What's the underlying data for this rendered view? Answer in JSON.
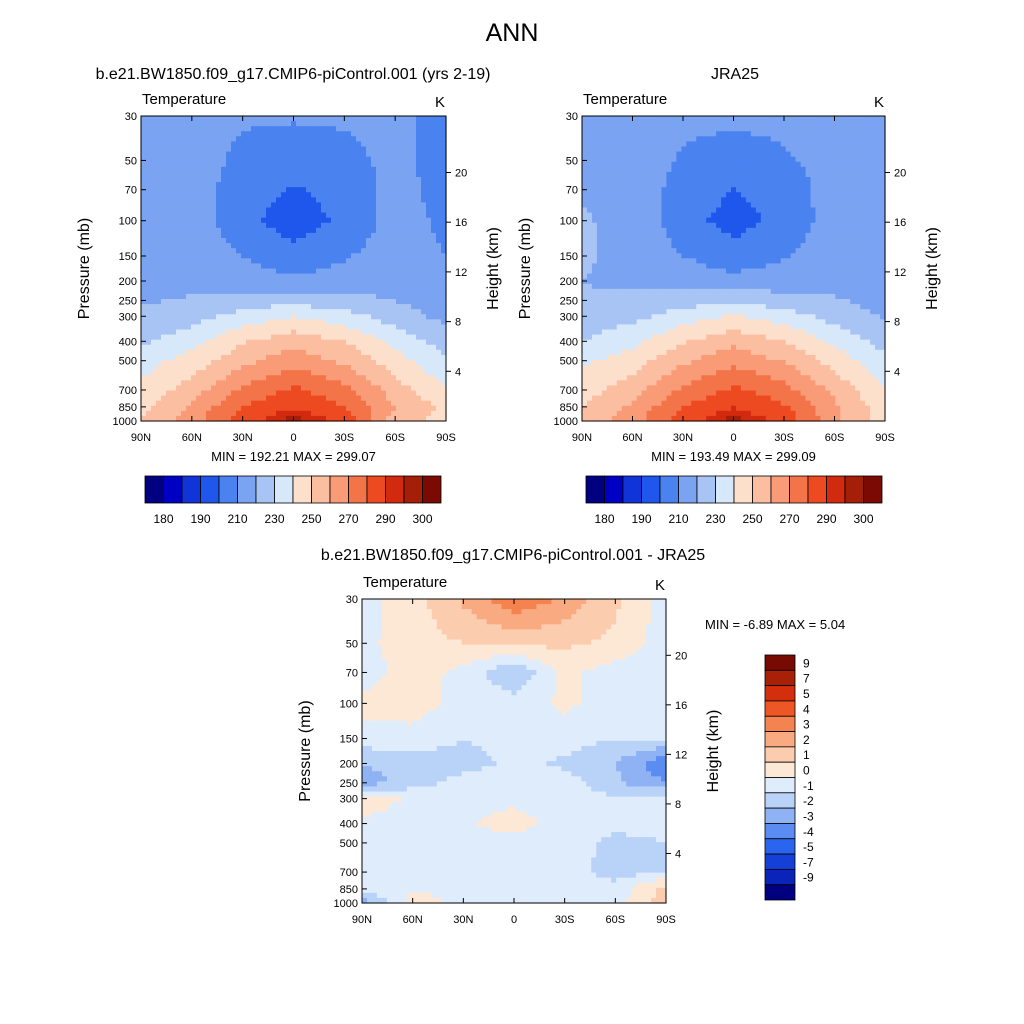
{
  "figure": {
    "title": "ANN"
  },
  "axes": {
    "pressure_label": "Pressure (mb)",
    "height_label": "Height (km)",
    "pressure_ticks": [
      "30",
      "50",
      "70",
      "100",
      "150",
      "200",
      "250",
      "300",
      "400",
      "500",
      "700",
      "850",
      "1000"
    ],
    "height_ticks": [
      "20",
      "16",
      "12",
      "8",
      "4"
    ],
    "lat_ticks": [
      "90N",
      "60N",
      "30N",
      "0",
      "30S",
      "60S",
      "90S"
    ]
  },
  "palette": {
    "abs": [
      "#000080",
      "#0000c4",
      "#1034d8",
      "#1f57ec",
      "#4a82f0",
      "#7aa3f2",
      "#a8c4f5",
      "#d8e8fb",
      "#fde0cc",
      "#fcbea0",
      "#f89b76",
      "#f4744a",
      "#ed4a22",
      "#d22a0e",
      "#a51f08",
      "#7c0a04"
    ],
    "diff": [
      "#000080",
      "#0a23b8",
      "#1540d8",
      "#2a65ef",
      "#5a8cf2",
      "#8eb2f4",
      "#b9d2f7",
      "#dfecfc",
      "#fde8d6",
      "#fcccae",
      "#f9aa80",
      "#f5834f",
      "#ef5626",
      "#d42f0c",
      "#a82008",
      "#780a04"
    ]
  },
  "chart_data": [
    {
      "type": "heatmap",
      "title": "b.e21.BW1850.f09_g17.CMIP6-piControl.001 (yrs 2-19)",
      "variable": "Temperature",
      "units": "K",
      "min_max_text": "MIN = 192.21  MAX = 299.07",
      "x": [
        "90N",
        "60N",
        "30N",
        "0",
        "30S",
        "60S",
        "90S"
      ],
      "y": [
        1000,
        850,
        700,
        500,
        400,
        300,
        250,
        200,
        150,
        100,
        70,
        50,
        30
      ],
      "z": [
        [
          250,
          266,
          286,
          298,
          287,
          255,
          246
        ],
        [
          246,
          262,
          280,
          289,
          280,
          260,
          248
        ],
        [
          242,
          255,
          272,
          282,
          273,
          255,
          240
        ],
        [
          236,
          244,
          257,
          266,
          258,
          244,
          232
        ],
        [
          228,
          236,
          249,
          256,
          250,
          237,
          225
        ],
        [
          222,
          226,
          234,
          240,
          234,
          225,
          217
        ],
        [
          219,
          221,
          224,
          226,
          223,
          220,
          214
        ],
        [
          217,
          217,
          215,
          212,
          214,
          216,
          212
        ],
        [
          218,
          217,
          210,
          203,
          209,
          215,
          210
        ],
        [
          220,
          216,
          203,
          195,
          202,
          214,
          208
        ],
        [
          218,
          215,
          205,
          199,
          204,
          213,
          207
        ],
        [
          216,
          214,
          208,
          205,
          208,
          212,
          207
        ],
        [
          214,
          213,
          211,
          211,
          211,
          212,
          207
        ]
      ],
      "levels": [
        175,
        180,
        185,
        190,
        200,
        210,
        220,
        230,
        240,
        250,
        260,
        270,
        280,
        290,
        295,
        300
      ],
      "colorbar_labels": [
        "180",
        "190",
        "210",
        "230",
        "250",
        "270",
        "290",
        "300"
      ]
    },
    {
      "type": "heatmap",
      "title": "JRA25",
      "variable": "Temperature",
      "units": "K",
      "min_max_text": "MIN = 193.49  MAX = 299.09",
      "x": [
        "90N",
        "60N",
        "30N",
        "0",
        "30S",
        "60S",
        "90S"
      ],
      "y": [
        1000,
        850,
        700,
        500,
        400,
        300,
        250,
        200,
        150,
        100,
        70,
        50,
        30
      ],
      "z": [
        [
          254,
          266,
          286,
          298,
          288,
          262,
          245
        ],
        [
          250,
          262,
          280,
          290,
          281,
          262,
          245
        ],
        [
          245,
          256,
          272,
          282,
          274,
          257,
          240
        ],
        [
          238,
          245,
          258,
          267,
          259,
          246,
          232
        ],
        [
          230,
          237,
          249,
          257,
          250,
          238,
          226
        ],
        [
          224,
          227,
          235,
          241,
          235,
          226,
          219
        ],
        [
          221,
          222,
          225,
          227,
          224,
          221,
          216
        ],
        [
          220,
          218,
          216,
          213,
          215,
          217,
          214
        ],
        [
          221,
          218,
          210,
          204,
          209,
          216,
          213
        ],
        [
          221,
          217,
          204,
          196,
          203,
          215,
          212
        ],
        [
          219,
          216,
          206,
          200,
          205,
          214,
          211
        ],
        [
          217,
          215,
          209,
          206,
          209,
          213,
          211
        ],
        [
          215,
          214,
          212,
          212,
          212,
          213,
          210
        ]
      ],
      "levels": [
        175,
        180,
        185,
        190,
        200,
        210,
        220,
        230,
        240,
        250,
        260,
        270,
        280,
        290,
        295,
        300
      ],
      "colorbar_labels": [
        "180",
        "190",
        "210",
        "230",
        "250",
        "270",
        "290",
        "300"
      ]
    },
    {
      "type": "heatmap",
      "title": "b.e21.BW1850.f09_g17.CMIP6-piControl.001 - JRA25",
      "variable": "Temperature",
      "units": "K",
      "min_max_text": "MIN =  -6.89  MAX =   5.04",
      "x": [
        "90N",
        "60N",
        "30N",
        "0",
        "30S",
        "60S",
        "90S"
      ],
      "y": [
        1000,
        850,
        700,
        500,
        400,
        300,
        250,
        200,
        150,
        100,
        70,
        50,
        30
      ],
      "z": [
        [
          -2.5,
          0.5,
          -0.3,
          -0.2,
          -0.3,
          -0.5,
          1.5
        ],
        [
          -0.5,
          -0.2,
          -0.2,
          -0.3,
          -0.4,
          -0.6,
          1.5
        ],
        [
          -0.3,
          -0.2,
          -0.2,
          -0.4,
          -0.5,
          -1.5,
          -1.0
        ],
        [
          -0.2,
          -0.2,
          -0.3,
          -0.4,
          -0.6,
          -1.2,
          -1.0
        ],
        [
          -0.1,
          -0.2,
          -0.2,
          0.5,
          -0.5,
          -0.8,
          -0.8
        ],
        [
          0.3,
          -0.1,
          -0.3,
          -0.3,
          -0.5,
          -0.8,
          -0.5
        ],
        [
          -2.5,
          -1.5,
          -0.5,
          -0.4,
          -0.5,
          -1.8,
          -3.0
        ],
        [
          -2.0,
          -1.6,
          -1.5,
          -0.7,
          -1.2,
          -2.0,
          -3.8
        ],
        [
          -0.4,
          -0.3,
          -1.0,
          -0.5,
          -0.5,
          -1.0,
          -1.0
        ],
        [
          0.3,
          0.4,
          -0.3,
          -0.5,
          0.2,
          -0.5,
          -0.8
        ],
        [
          -0.5,
          0.5,
          -0.3,
          -2.0,
          0.3,
          -0.5,
          -0.8
        ],
        [
          -0.3,
          0.6,
          1.0,
          1.3,
          1.2,
          0.8,
          -0.5
        ],
        [
          -0.4,
          0.5,
          2.2,
          3.8,
          2.8,
          1.2,
          -0.5
        ]
      ],
      "levels": [
        -10,
        -9,
        -7,
        -5,
        -4,
        -3,
        -2,
        -1,
        0,
        1,
        2,
        3,
        4,
        5,
        7,
        9
      ],
      "colorbar_labels": [
        "9",
        "7",
        "5",
        "4",
        "3",
        "2",
        "1",
        "0",
        "-1",
        "-2",
        "-3",
        "-4",
        "-5",
        "-7",
        "-9"
      ]
    }
  ]
}
